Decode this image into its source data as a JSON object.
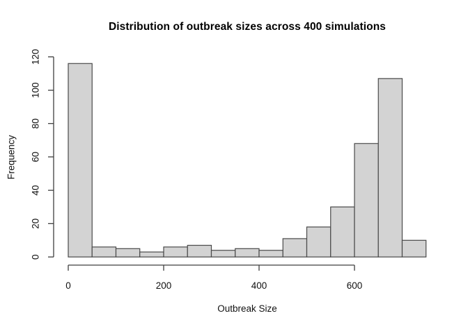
{
  "chart_data": {
    "type": "bar",
    "subtype": "histogram",
    "title": "Distribution of outbreak sizes across 400 simulations",
    "xlabel": "Outbreak Size",
    "ylabel": "Frequency",
    "total_count": 400,
    "bin_width": 50,
    "bin_edges": [
      0,
      50,
      100,
      150,
      200,
      250,
      300,
      350,
      400,
      450,
      500,
      550,
      600,
      650,
      700,
      750
    ],
    "categories": [
      "0-50",
      "50-100",
      "100-150",
      "150-200",
      "200-250",
      "250-300",
      "300-350",
      "350-400",
      "400-450",
      "450-500",
      "500-550",
      "550-600",
      "600-650",
      "650-700",
      "700-750"
    ],
    "values": [
      116,
      6,
      5,
      3,
      6,
      7,
      4,
      5,
      4,
      11,
      18,
      30,
      68,
      107,
      10
    ],
    "x_ticks": [
      0,
      200,
      400,
      600
    ],
    "y_ticks": [
      0,
      20,
      40,
      60,
      80,
      100,
      120
    ],
    "xlim": [
      0,
      750
    ],
    "ylim": [
      0,
      120
    ],
    "grid": false,
    "legend": false,
    "bar_fill": "#d3d3d3",
    "bar_border": "#4a4a4a",
    "axis_color": "#3f3f3f",
    "text_color": "#111111"
  }
}
